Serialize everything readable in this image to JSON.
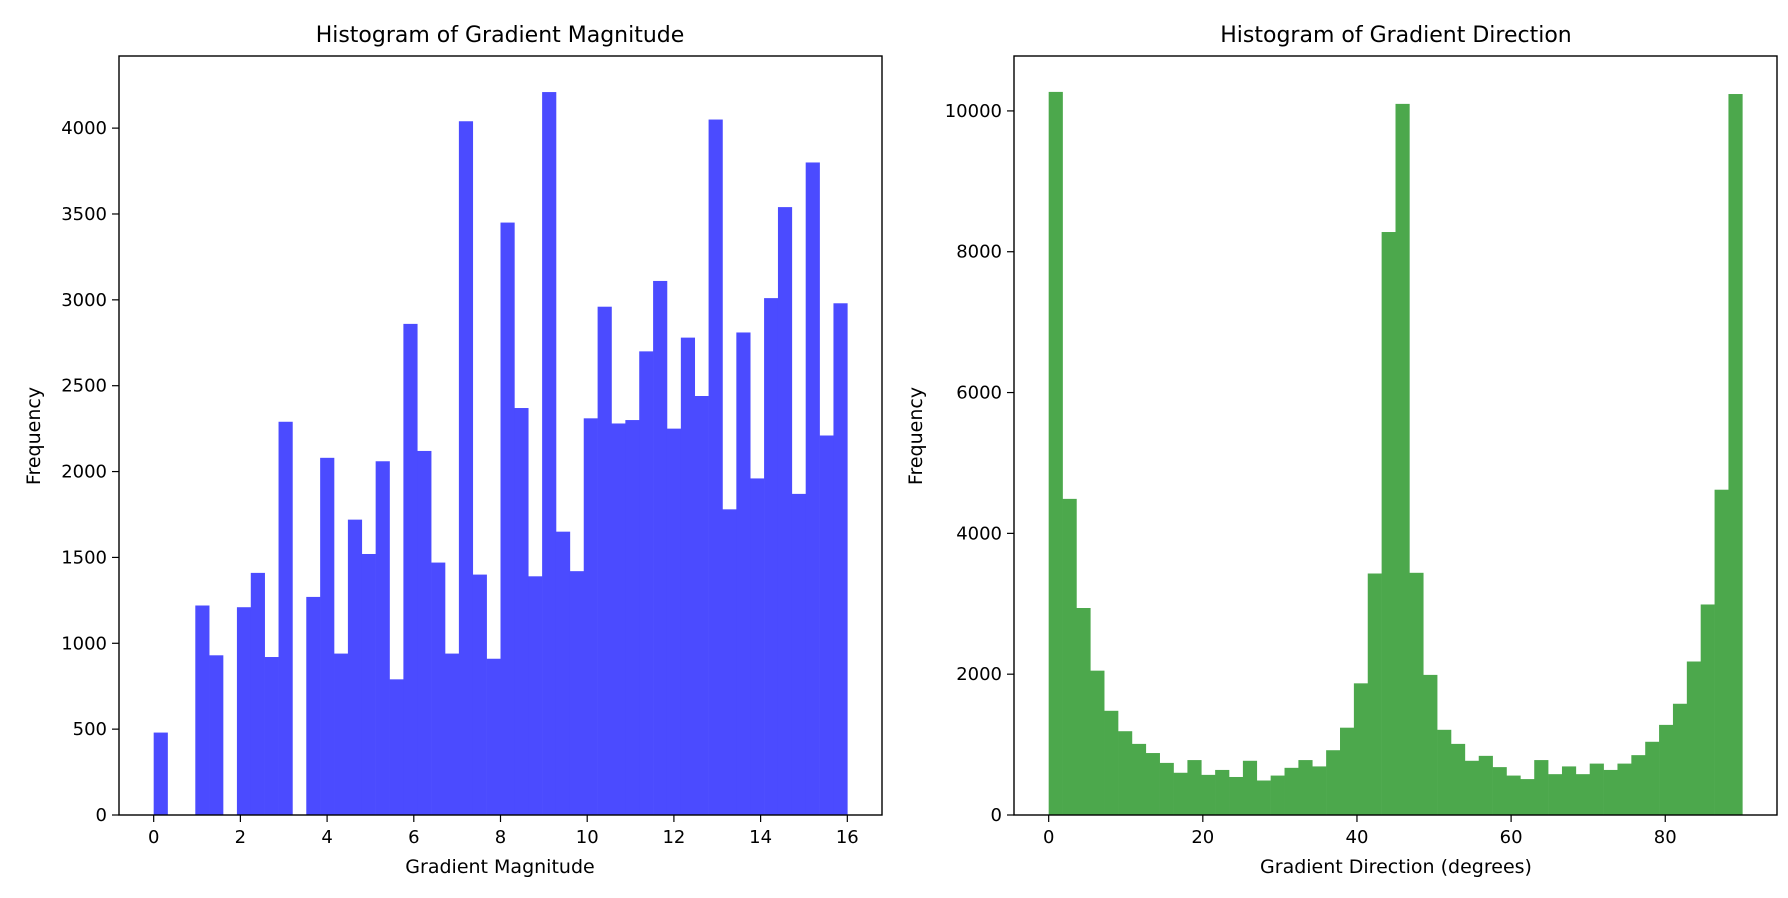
{
  "chart_data": [
    {
      "type": "bar",
      "title": "Histogram of Gradient Magnitude",
      "xlabel": "Gradient Magnitude",
      "ylabel": "Frequency",
      "xlim": [
        -0.8,
        16.8
      ],
      "ylim": [
        0,
        4420
      ],
      "bar_color": "#4b4bff",
      "bin_width": 0.32,
      "x_ticks": [
        0,
        2,
        4,
        6,
        8,
        10,
        12,
        14,
        16
      ],
      "y_ticks": [
        0,
        500,
        1000,
        1500,
        2000,
        2500,
        3000,
        3500,
        4000
      ],
      "x_tick_labels": [
        "0",
        "2",
        "4",
        "6",
        "8",
        "10",
        "12",
        "14",
        "16"
      ],
      "y_tick_labels": [
        "0",
        "500",
        "1000",
        "1500",
        "2000",
        "2500",
        "3000",
        "3500",
        "4000"
      ],
      "bin_starts": [
        0,
        0.32,
        0.64,
        0.96,
        1.28,
        1.6,
        1.92,
        2.24,
        2.56,
        2.88,
        3.2,
        3.52,
        3.84,
        4.16,
        4.48,
        4.8,
        5.12,
        5.44,
        5.76,
        6.08,
        6.4,
        6.72,
        7.04,
        7.36,
        7.68,
        8.0,
        8.32,
        8.64,
        8.96,
        9.28,
        9.6,
        9.92,
        10.24,
        10.56,
        10.88,
        11.2,
        11.52,
        11.84,
        12.16,
        12.48,
        12.8,
        13.12,
        13.44,
        13.76,
        14.08,
        14.4,
        14.72,
        15.04,
        15.36,
        15.68
      ],
      "values": [
        480,
        0,
        0,
        1220,
        930,
        0,
        1210,
        1410,
        920,
        2290,
        0,
        1270,
        2080,
        940,
        1720,
        1520,
        2060,
        790,
        2860,
        2120,
        1470,
        940,
        4040,
        1400,
        910,
        3450,
        2370,
        1390,
        4210,
        1650,
        1420,
        2310,
        2960,
        2280,
        2300,
        2700,
        3110,
        2250,
        2780,
        2440,
        4050,
        1780,
        2810,
        1960,
        3010,
        3540,
        1870,
        3800,
        2210,
        2980
      ]
    },
    {
      "type": "bar",
      "title": "Histogram of Gradient Direction",
      "xlabel": "Gradient Direction (degrees)",
      "ylabel": "Frequency",
      "xlim": [
        -4.5,
        94.5
      ],
      "ylim": [
        0,
        10780
      ],
      "bar_color": "#4ca84c",
      "bin_width": 1.8,
      "x_ticks": [
        0,
        20,
        40,
        60,
        80
      ],
      "y_ticks": [
        0,
        2000,
        4000,
        6000,
        8000,
        10000
      ],
      "x_tick_labels": [
        "0",
        "20",
        "40",
        "60",
        "80"
      ],
      "y_tick_labels": [
        "0",
        "2000",
        "4000",
        "6000",
        "8000",
        "10000"
      ],
      "bin_starts": [
        0,
        1.8,
        3.6,
        5.4,
        7.2,
        9.0,
        10.8,
        12.6,
        14.4,
        16.2,
        18.0,
        19.8,
        21.6,
        23.4,
        25.2,
        27.0,
        28.8,
        30.6,
        32.4,
        34.2,
        36.0,
        37.8,
        39.6,
        41.4,
        43.2,
        45.0,
        46.8,
        48.6,
        50.4,
        52.2,
        54.0,
        55.8,
        57.6,
        59.4,
        61.2,
        63.0,
        64.8,
        66.6,
        68.4,
        70.2,
        72.0,
        73.8,
        75.6,
        77.4,
        79.2,
        81.0,
        82.8,
        84.6,
        86.4,
        88.2
      ],
      "values": [
        10270,
        4490,
        2940,
        2050,
        1480,
        1190,
        1010,
        880,
        740,
        600,
        780,
        570,
        640,
        540,
        770,
        490,
        560,
        670,
        780,
        690,
        920,
        1240,
        1870,
        3430,
        8280,
        10100,
        3440,
        1990,
        1210,
        1010,
        770,
        840,
        680,
        560,
        510,
        780,
        580,
        690,
        580,
        730,
        640,
        730,
        850,
        1040,
        1280,
        1580,
        2180,
        2990,
        4620,
        10240
      ]
    }
  ]
}
